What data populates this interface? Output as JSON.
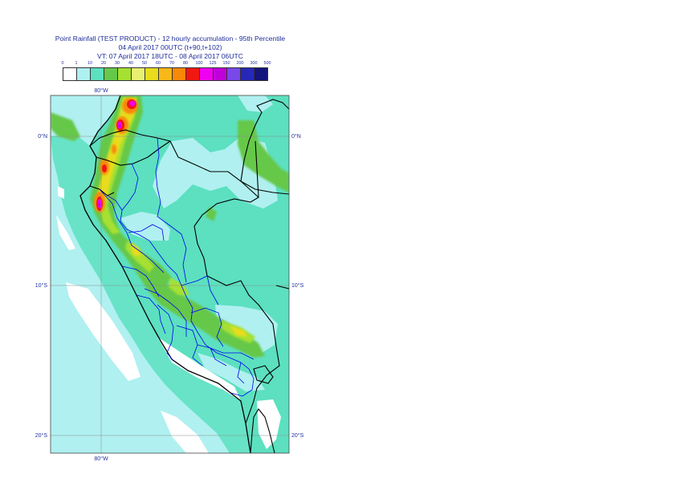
{
  "title": {
    "line1": "Point Rainfall (TEST PRODUCT) - 12 hourly accumulation - 95th Percentile",
    "line2": "04 April 2017 00UTC (t+90,t+102)",
    "line3": "VT: 07 April 2017 18UTC - 08 April 2017 06UTC"
  },
  "legend": {
    "labels": [
      "0",
      "1",
      "10",
      "20",
      "30",
      "40",
      "50",
      "60",
      "70",
      "80",
      "100",
      "125",
      "150",
      "200",
      "300",
      "500"
    ],
    "colors": [
      "#ffffff",
      "#b0f0f0",
      "#5ce0c0",
      "#66c84a",
      "#a6e030",
      "#e8f070",
      "#e8dc1c",
      "#f8b818",
      "#f88808",
      "#f01810",
      "#f000f0",
      "#c000d8",
      "#7848e8",
      "#2828b8",
      "#14147c"
    ]
  },
  "axes": {
    "lon_top": "80°W",
    "lon_bottom": "80°W",
    "lat_left": [
      "0°N",
      "10°S",
      "20°S"
    ],
    "lat_right": [
      "0°N",
      "10°S",
      "20°S"
    ]
  },
  "map": {
    "ocean_color": "#b0f0f0",
    "land_color": "#5ce0c0",
    "border_color": "#000000",
    "admin_color": "#0000ee",
    "grid_color": "#8c8c8c"
  }
}
